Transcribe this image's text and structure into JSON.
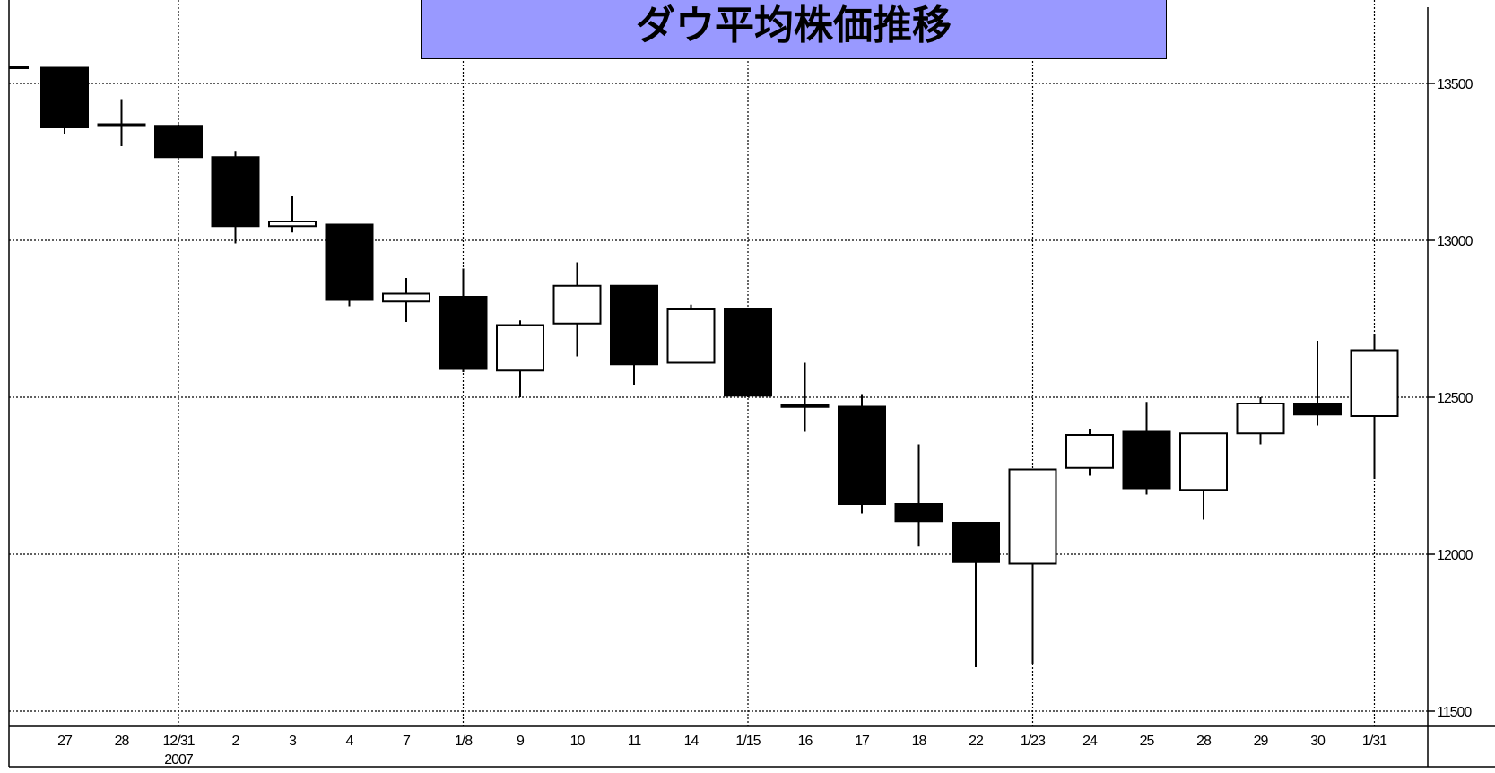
{
  "chart_data": {
    "type": "candlestick",
    "title": "ダウ平均株価推移",
    "up_color": "#ffffff",
    "down_color": "#000000",
    "title_bg": "#9999ff",
    "grid": true,
    "ylim": [
      11450,
      13750
    ],
    "y_ticks": [
      11500,
      12000,
      12500,
      13000,
      13500
    ],
    "y_tick_labels": [
      "11500",
      "12000",
      "12500",
      "13000",
      "13500"
    ],
    "x_tick_labels": [
      "27",
      "28",
      "12/31",
      "2",
      "3",
      "4",
      "7",
      "1/8",
      "9",
      "10",
      "11",
      "14",
      "1/15",
      "16",
      "17",
      "18",
      "22",
      "1/23",
      "24",
      "25",
      "28",
      "29",
      "30",
      "1/31"
    ],
    "year_label": "2007",
    "candles": [
      {
        "date": "27",
        "open": 13550,
        "high": 13550,
        "low": 13340,
        "close": 13360
      },
      {
        "date": "28",
        "open": 13370,
        "high": 13450,
        "low": 13300,
        "close": 13365
      },
      {
        "date": "12/31",
        "open": 13365,
        "high": 13370,
        "low": 13265,
        "close": 13265
      },
      {
        "date": "2",
        "open": 13265,
        "high": 13285,
        "low": 12990,
        "close": 13045
      },
      {
        "date": "3",
        "open": 13045,
        "high": 13140,
        "low": 13025,
        "close": 13060
      },
      {
        "date": "4",
        "open": 13050,
        "high": 13050,
        "low": 12790,
        "close": 12810
      },
      {
        "date": "7",
        "open": 12805,
        "high": 12880,
        "low": 12740,
        "close": 12830
      },
      {
        "date": "1/8",
        "open": 12820,
        "high": 12910,
        "low": 12580,
        "close": 12590
      },
      {
        "date": "9",
        "open": 12585,
        "high": 12745,
        "low": 12500,
        "close": 12730
      },
      {
        "date": "10",
        "open": 12735,
        "high": 12930,
        "low": 12630,
        "close": 12855
      },
      {
        "date": "11",
        "open": 12855,
        "high": 12855,
        "low": 12540,
        "close": 12605
      },
      {
        "date": "14",
        "open": 12610,
        "high": 12795,
        "low": 12610,
        "close": 12780
      },
      {
        "date": "1/15",
        "open": 12780,
        "high": 12780,
        "low": 12500,
        "close": 12505
      },
      {
        "date": "16",
        "open": 12475,
        "high": 12610,
        "low": 12390,
        "close": 12470
      },
      {
        "date": "17",
        "open": 12470,
        "high": 12510,
        "low": 12130,
        "close": 12160
      },
      {
        "date": "18",
        "open": 12160,
        "high": 12350,
        "low": 12025,
        "close": 12105
      },
      {
        "date": "22",
        "open": 12100,
        "high": 12100,
        "low": 11640,
        "close": 11975
      },
      {
        "date": "1/23",
        "open": 11970,
        "high": 12270,
        "low": 11650,
        "close": 12270
      },
      {
        "date": "24",
        "open": 12275,
        "high": 12400,
        "low": 12250,
        "close": 12380
      },
      {
        "date": "25",
        "open": 12390,
        "high": 12485,
        "low": 12190,
        "close": 12210
      },
      {
        "date": "28",
        "open": 12205,
        "high": 12385,
        "low": 12110,
        "close": 12385
      },
      {
        "date": "29",
        "open": 12385,
        "high": 12500,
        "low": 12350,
        "close": 12480
      },
      {
        "date": "30",
        "open": 12480,
        "high": 12680,
        "low": 12410,
        "close": 12445
      },
      {
        "date": "1/31",
        "open": 12440,
        "high": 12700,
        "low": 12240,
        "close": 12650
      }
    ]
  }
}
